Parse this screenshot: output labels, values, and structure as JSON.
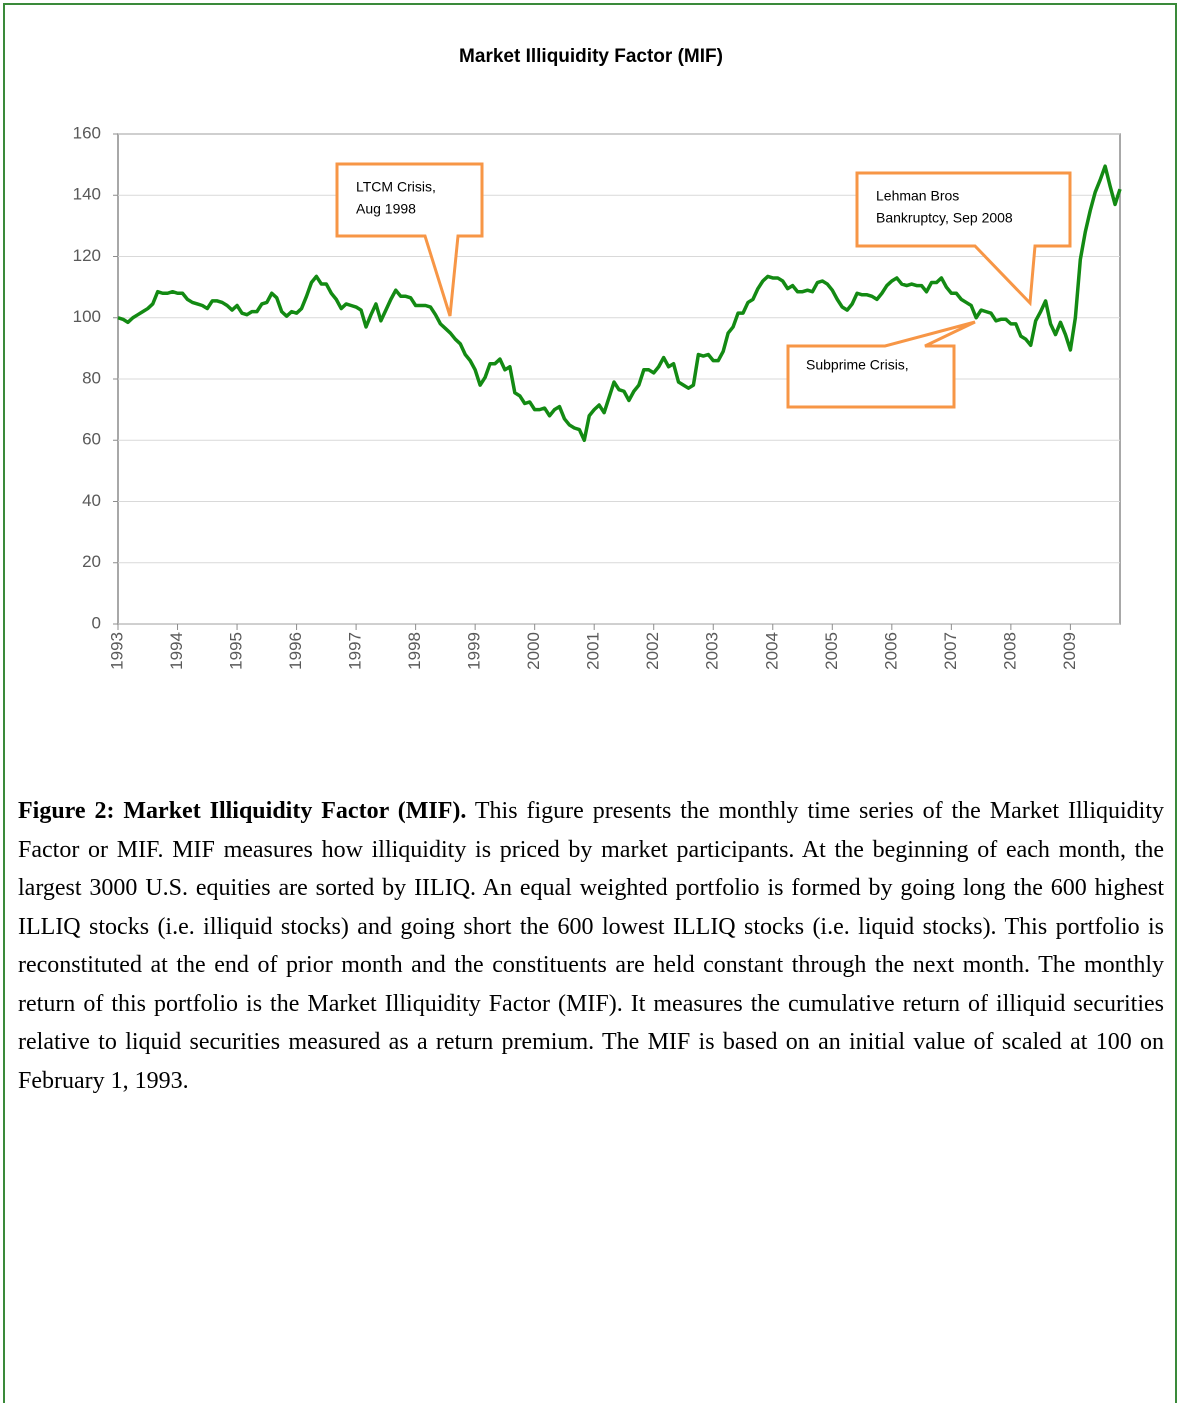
{
  "chart_data": {
    "type": "line",
    "title": "Market Illiquidity Factor (MIF)",
    "categories": [
      "1993",
      null,
      null,
      null,
      null,
      null,
      null,
      null,
      null,
      null,
      null,
      null,
      "1994",
      null,
      null,
      null,
      null,
      null,
      null,
      null,
      null,
      null,
      null,
      null,
      "1995",
      null,
      null,
      null,
      null,
      null,
      null,
      null,
      null,
      null,
      null,
      null,
      "1996",
      null,
      null,
      null,
      null,
      null,
      null,
      null,
      null,
      null,
      null,
      null,
      "1997",
      null,
      null,
      null,
      null,
      null,
      null,
      null,
      null,
      null,
      null,
      null,
      "1998",
      null,
      null,
      null,
      null,
      null,
      null,
      null,
      null,
      null,
      null,
      null,
      "1999",
      null,
      null,
      null,
      null,
      null,
      null,
      null,
      null,
      null,
      null,
      null,
      "2000",
      null,
      null,
      null,
      null,
      null,
      null,
      null,
      null,
      null,
      null,
      null,
      "2001",
      null,
      null,
      null,
      null,
      null,
      null,
      null,
      null,
      null,
      null,
      null,
      "2002",
      null,
      null,
      null,
      null,
      null,
      null,
      null,
      null,
      null,
      null,
      null,
      "2003",
      null,
      null,
      null,
      null,
      null,
      null,
      null,
      null,
      null,
      null,
      null,
      "2004",
      null,
      null,
      null,
      null,
      null,
      null,
      null,
      null,
      null,
      null,
      null,
      "2005",
      null,
      null,
      null,
      null,
      null,
      null,
      null,
      null,
      null,
      null,
      null,
      "2006",
      null,
      null,
      null,
      null,
      null,
      null,
      null,
      null,
      null,
      null,
      null,
      "2007",
      null,
      null,
      null,
      null,
      null,
      null,
      null,
      null,
      null,
      null,
      null,
      "2008",
      null,
      null,
      null,
      null,
      null,
      null,
      null,
      null,
      null,
      null,
      null,
      "2009",
      null,
      null,
      null,
      null,
      null,
      null,
      null,
      null,
      null,
      null
    ],
    "series": [
      {
        "color": "#138a13",
        "values": [
          100,
          99.5,
          98.5,
          100,
          101,
          102,
          103,
          104.5,
          108.5,
          108,
          108,
          108.5,
          108,
          108,
          106,
          105,
          104.5,
          104,
          103,
          105.5,
          105.5,
          105,
          104,
          102.5,
          104,
          101.5,
          101,
          102,
          102,
          104.5,
          105,
          108,
          106.5,
          102,
          100.5,
          102,
          101.5,
          103,
          107,
          111.5,
          113.5,
          111,
          111,
          108,
          106,
          103,
          104.5,
          104,
          103.5,
          102.5,
          97,
          101,
          104.5,
          99,
          102.5,
          106,
          109,
          107,
          107,
          106.5,
          104,
          104,
          104,
          103.5,
          101,
          98,
          96.5,
          95,
          93,
          91.5,
          88,
          86,
          83,
          78,
          80.5,
          85,
          85,
          86.5,
          83,
          84,
          75.5,
          74.5,
          72,
          72.5,
          70,
          70,
          70.5,
          68,
          70,
          71,
          67,
          65,
          64,
          63.5,
          60,
          68,
          70,
          71.5,
          69,
          74,
          79,
          76.5,
          76,
          73,
          76,
          78,
          83,
          83,
          82,
          84,
          87,
          84,
          85,
          79,
          78,
          77,
          78,
          88,
          87.5,
          88,
          86,
          86,
          89,
          95,
          97,
          101.5,
          101.5,
          105,
          106,
          109.5,
          112,
          113.5,
          113,
          113,
          112,
          109.5,
          110.5,
          108.5,
          108.5,
          109,
          108.5,
          111.5,
          112,
          111,
          109,
          106,
          103.5,
          102.5,
          104.5,
          108,
          107.5,
          107.5,
          107,
          106,
          108,
          110.5,
          112,
          113,
          111,
          110.5,
          111,
          110.5,
          110.5,
          108.5,
          111.5,
          111.5,
          113,
          110,
          108,
          108,
          106,
          105,
          104,
          100,
          102.5,
          102,
          101.5,
          99,
          99.5,
          99.5,
          98,
          98,
          94,
          93,
          91,
          99,
          102,
          105.5,
          98,
          94.5,
          98.5,
          94.5,
          89.5,
          100,
          119,
          128,
          135,
          141,
          145,
          149.5,
          143,
          137,
          142
        ]
      }
    ],
    "ylim": [
      0,
      160
    ],
    "yticks": [
      0,
      20,
      40,
      60,
      80,
      100,
      120,
      140,
      160
    ],
    "grid": true,
    "annotations": [
      {
        "lines": [
          "LTCM Crisis,",
          "Aug 1998"
        ]
      },
      {
        "lines": [
          "Lehman Bros",
          "Bankruptcy, Sep 2008"
        ]
      },
      {
        "lines": [
          "Subprime Crisis,"
        ]
      }
    ]
  },
  "caption": {
    "label": "Figure 2: Market Illiquidity Factor (MIF).",
    "text": "This figure presents the monthly time series of the Market Illiquidity Factor or MIF. MIF measures how illiquidity is priced by market participants. At the beginning of each month, the largest 3000 U.S. equities are sorted by IILIQ. An equal weighted portfolio is formed by going long the 600 highest ILLIQ stocks (i.e. illiquid stocks) and going short the 600 lowest ILLIQ stocks (i.e. liquid stocks). This portfolio is reconstituted at the end of prior month and the constituents are held constant through the next month. The monthly return of this portfolio is the Market Illiquidity Factor (MIF). It measures the cumulative return of illiquid securities relative to liquid securities measured as a return premium. The MIF is based on an initial value of scaled at 100 on February 1, 1993."
  }
}
